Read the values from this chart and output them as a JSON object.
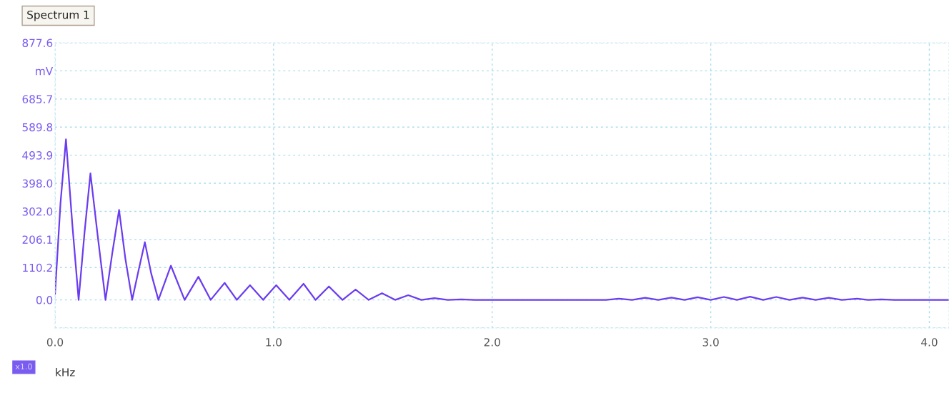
{
  "chart_data": {
    "type": "line",
    "title": "Spectrum 1",
    "xlabel": "kHz",
    "annotations": [
      "x1.0"
    ],
    "x": [
      0.0,
      0.025,
      0.05,
      0.08,
      0.108,
      0.135,
      0.162,
      0.195,
      0.231,
      0.262,
      0.293,
      0.322,
      0.353,
      0.382,
      0.411,
      0.44,
      0.473,
      0.53,
      0.593,
      0.656,
      0.712,
      0.776,
      0.832,
      0.892,
      0.952,
      1.012,
      1.072,
      1.137,
      1.192,
      1.253,
      1.315,
      1.375,
      1.435,
      1.496,
      1.556,
      1.616,
      1.676,
      1.736,
      1.797,
      1.858,
      1.92,
      2.45,
      2.52,
      2.58,
      2.64,
      2.7,
      2.76,
      2.82,
      2.88,
      2.94,
      3.0,
      3.06,
      3.12,
      3.18,
      3.24,
      3.3,
      3.36,
      3.42,
      3.48,
      3.54,
      3.6,
      3.67,
      3.72,
      3.78,
      3.84,
      4.09
    ],
    "series": [
      {
        "color": "#6a3cf0",
        "values": [
          20,
          330,
          548,
          250,
          0,
          230,
          432,
          220,
          0,
          160,
          307,
          140,
          0,
          100,
          197,
          90,
          0,
          117,
          0,
          79,
          0,
          58,
          0,
          50,
          0,
          50,
          0,
          55,
          0,
          46,
          0,
          35,
          0,
          23,
          0,
          16,
          0,
          6,
          0,
          2,
          0,
          0,
          0,
          4,
          0,
          7,
          0,
          8,
          0,
          9,
          0,
          10,
          0,
          11,
          0,
          10,
          0,
          8,
          0,
          7,
          0,
          4,
          0,
          2,
          0,
          0
        ]
      }
    ],
    "xlim": [
      0,
      4.09
    ],
    "xticks": [
      {
        "value": 0,
        "label": "0.0"
      },
      {
        "value": 1,
        "label": "1.0"
      },
      {
        "value": 2,
        "label": "2.0"
      },
      {
        "value": 3,
        "label": "3.0"
      },
      {
        "value": 4,
        "label": "4.0"
      }
    ],
    "ylim": [
      -95.9,
      877.6
    ],
    "yticks": [
      {
        "value": -95.9,
        "label": null
      },
      {
        "value": 0,
        "label": "0.0"
      },
      110.2,
      206.1,
      {
        "value": 302.0,
        "label": "302.0"
      },
      {
        "value": 398.0,
        "label": "398.0"
      },
      493.9,
      589.8,
      685.7,
      {
        "value": 781.7,
        "label": "mV"
      },
      877.6
    ],
    "grid": true,
    "line_style": "solid",
    "marker": "none"
  }
}
